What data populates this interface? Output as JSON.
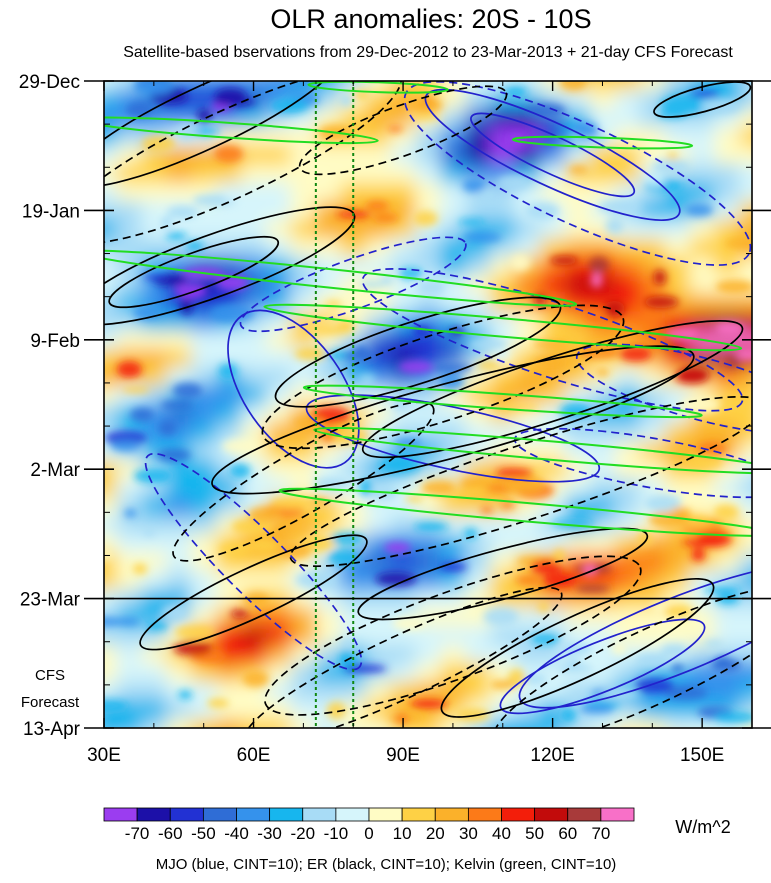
{
  "chart_data": {
    "type": "heatmap",
    "title": "OLR anomalies: 20S - 10S",
    "subtitle": "Satellite-based bservations from 29-Dec-2012 to 23-Mar-2013 + 21-day CFS Forecast",
    "x_range": [
      30,
      160
    ],
    "x_ticks": [
      {
        "value": 30,
        "label": "30E"
      },
      {
        "value": 60,
        "label": "60E"
      },
      {
        "value": 90,
        "label": "90E"
      },
      {
        "value": 120,
        "label": "120E"
      },
      {
        "value": 150,
        "label": "150E"
      }
    ],
    "y_range_days": [
      0,
      105
    ],
    "y_ticks": [
      {
        "day": 0,
        "label": "29-Dec"
      },
      {
        "day": 21,
        "label": "19-Jan"
      },
      {
        "day": 42,
        "label": "9-Feb"
      },
      {
        "day": 63,
        "label": "2-Mar"
      },
      {
        "day": 84,
        "label": "23-Mar"
      },
      {
        "day": 105,
        "label": "13-Apr"
      }
    ],
    "forecast_start_day": 84,
    "forecast_label_line1": "CFS",
    "forecast_label_line2": "Forecast",
    "reference_lines_lon": [
      72.5,
      80
    ],
    "colorbar": {
      "units": "W/m^2",
      "labels": [
        "-70",
        "-60",
        "-50",
        "-40",
        "-30",
        "-20",
        "-10",
        "0",
        "10",
        "20",
        "30",
        "40",
        "50",
        "60",
        "70"
      ],
      "colors": [
        "#9b3df0",
        "#1c10a8",
        "#2231d3",
        "#2f6dd6",
        "#3592ec",
        "#17b6ee",
        "#a8dcf6",
        "#d6f5fb",
        "#fffcc5",
        "#fed145",
        "#fbb12a",
        "#fc7a18",
        "#f31e0a",
        "#c20b0b",
        "#a83a3a",
        "#f870c8"
      ]
    },
    "olr_anomaly_features": [
      {
        "lon": 50,
        "day": 3,
        "value": -55
      },
      {
        "lon": 113,
        "day": 10,
        "value": -60
      },
      {
        "lon": 45,
        "day": 32,
        "value": -65
      },
      {
        "lon": 88,
        "day": 43,
        "value": -45
      },
      {
        "lon": 135,
        "day": 36,
        "value": 65
      },
      {
        "lon": 155,
        "day": 43,
        "value": 50
      },
      {
        "lon": 98,
        "day": 80,
        "value": -45
      },
      {
        "lon": 125,
        "day": 82,
        "value": 50
      },
      {
        "lon": 40,
        "day": 58,
        "value": -35
      },
      {
        "lon": 65,
        "day": 15,
        "value": 30
      },
      {
        "lon": 140,
        "day": 96,
        "value": -40
      },
      {
        "lon": 60,
        "day": 90,
        "value": 25
      }
    ],
    "contour_legend": "MJO (blue, CINT=10); ER (black, CINT=10); Kelvin (green, CINT=10)",
    "contour_series": [
      {
        "name": "MJO",
        "color": "#2222cc",
        "cint": 10
      },
      {
        "name": "ER",
        "color": "#000000",
        "cint": 10
      },
      {
        "name": "Kelvin",
        "color": "#22dd22",
        "cint": 10
      }
    ]
  }
}
